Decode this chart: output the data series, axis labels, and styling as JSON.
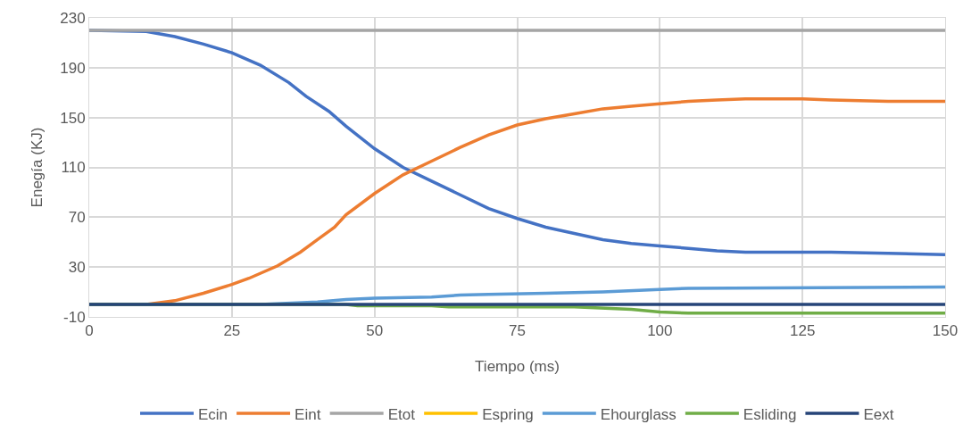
{
  "chart_data": {
    "type": "line",
    "xlabel": "Tiempo (ms)",
    "ylabel": "Enegía (KJ)",
    "xlim": [
      0,
      150
    ],
    "xticks": [
      0,
      25,
      50,
      75,
      100,
      125,
      150
    ],
    "ylim": [
      -10,
      230
    ],
    "yticks": [
      -10,
      30,
      70,
      110,
      150,
      190,
      230
    ],
    "grid": true,
    "legend": "bottom",
    "marker": "none",
    "line_style": "solid",
    "series": [
      {
        "name": "Ecin",
        "color": "#4472c4",
        "x": [
          0,
          10,
          15,
          20,
          25,
          30,
          35,
          38,
          42,
          45,
          50,
          55,
          60,
          65,
          70,
          75,
          80,
          85,
          90,
          95,
          100,
          105,
          110,
          115,
          120,
          125,
          130,
          140,
          150
        ],
        "values": [
          220,
          219,
          215,
          209,
          202,
          192,
          178,
          167,
          155,
          143,
          125,
          110,
          99,
          88,
          77,
          69,
          62,
          57,
          52,
          49,
          47,
          45,
          43,
          42,
          42,
          42,
          42,
          41,
          40
        ]
      },
      {
        "name": "Eint",
        "color": "#ed7d31",
        "x": [
          0,
          10,
          15,
          20,
          25,
          28,
          33,
          37,
          40,
          43,
          45,
          50,
          55,
          60,
          65,
          70,
          75,
          80,
          85,
          90,
          95,
          100,
          105,
          110,
          115,
          120,
          125,
          130,
          140,
          150
        ],
        "values": [
          0,
          0,
          3,
          9,
          16,
          21,
          31,
          42,
          52,
          62,
          72,
          89,
          104,
          115,
          126,
          136,
          144,
          149,
          153,
          157,
          159,
          161,
          163,
          164,
          165,
          165,
          165,
          164,
          163,
          163
        ]
      },
      {
        "name": "Etot",
        "color": "#a5a5a5",
        "x": [
          0,
          150
        ],
        "values": [
          220,
          220
        ]
      },
      {
        "name": "Espring",
        "color": "#ffc000"
      },
      {
        "name": "Ehourglass",
        "color": "#5b9bd5",
        "x": [
          0,
          30,
          40,
          45,
          50,
          60,
          65,
          70,
          80,
          90,
          100,
          105,
          150
        ],
        "values": [
          0,
          0,
          2,
          4,
          5,
          6,
          7.5,
          8,
          9,
          10,
          12,
          13,
          14
        ]
      },
      {
        "name": "Esliding",
        "color": "#70ad47",
        "x": [
          0,
          45,
          47,
          60,
          63,
          70,
          85,
          95,
          100,
          105,
          150
        ],
        "values": [
          0,
          0,
          -1,
          -1,
          -2,
          -2,
          -2,
          -4,
          -6,
          -7,
          -7
        ]
      },
      {
        "name": "Eext",
        "color": "#264478",
        "x": [
          0,
          150
        ],
        "values": [
          0,
          0
        ]
      }
    ]
  }
}
